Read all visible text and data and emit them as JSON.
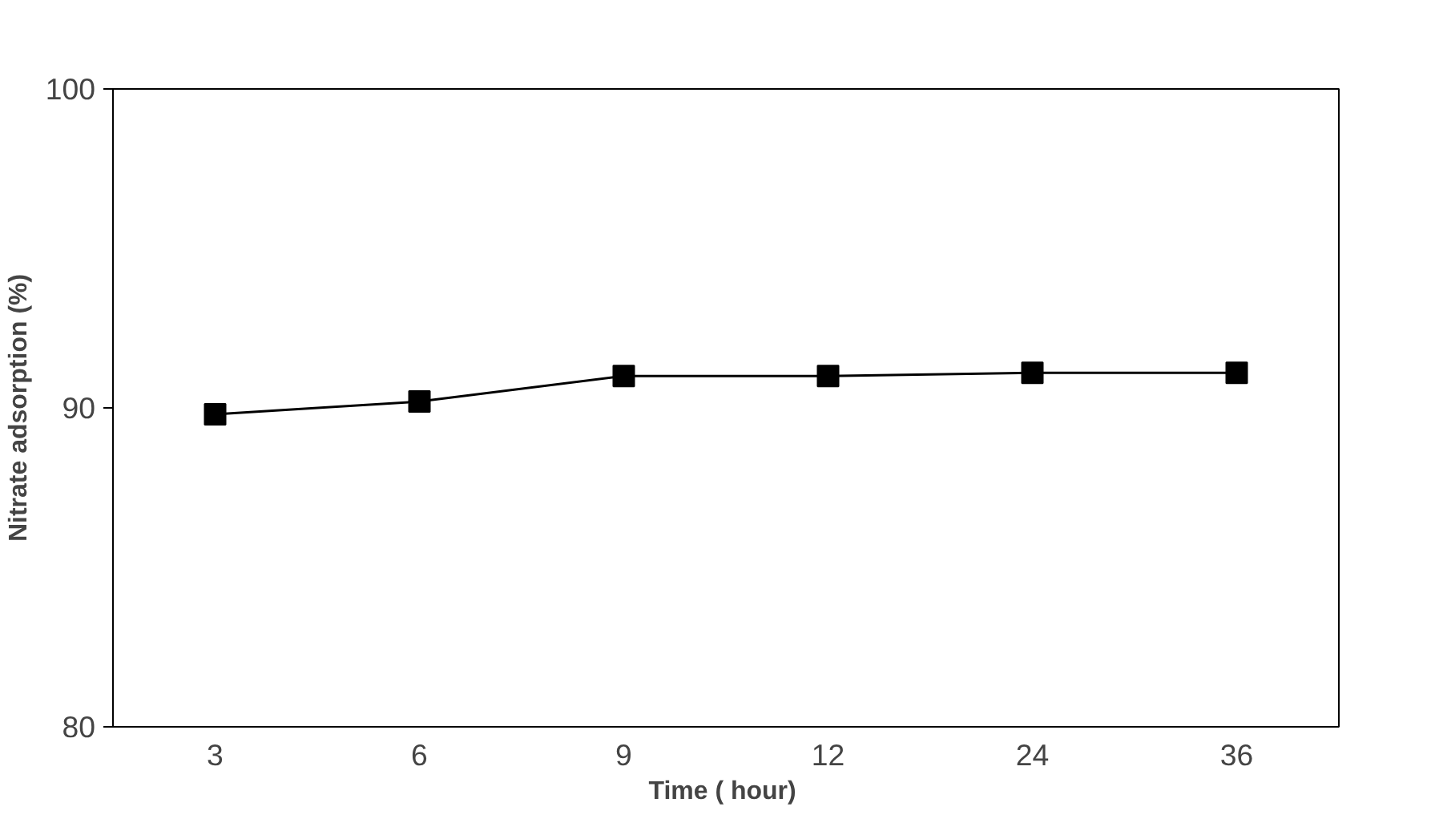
{
  "chart_data": {
    "type": "line",
    "xlabel": "Time  ( hour)",
    "ylabel": "Nitrate adsorption (%)",
    "categories": [
      "3",
      "6",
      "9",
      "12",
      "24",
      "36"
    ],
    "series": [
      {
        "color": "#000000",
        "values": [
          89.8,
          90.2,
          91.0,
          91.0,
          91.1,
          91.1
        ]
      }
    ],
    "ylim": [
      80,
      100
    ],
    "yticks": [
      80,
      90,
      100
    ],
    "grid": false,
    "marker": "square",
    "line_style": "solid"
  }
}
